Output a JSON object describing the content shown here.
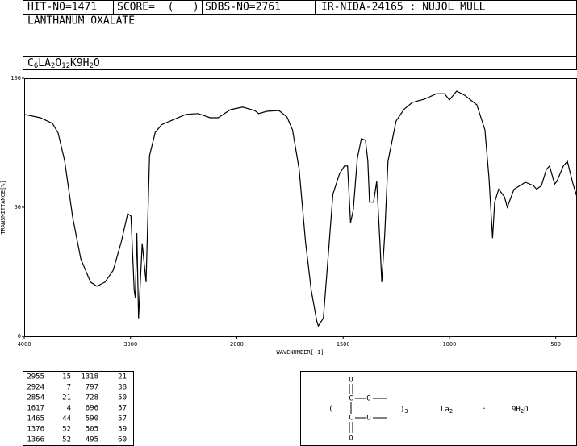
{
  "header": {
    "hit_no": "HIT-NO=1471",
    "score": "SCORE=  (   )",
    "sdbs_no": "SDBS-NO=2761",
    "ir": "IR-NIDA-24165 : NUJOL MULL",
    "name": "LANTHANUM OXALATE",
    "formula": [
      "C",
      "6",
      "LA",
      "2",
      "O",
      "12",
      "K9H",
      "2",
      "O"
    ]
  },
  "chart_data": {
    "type": "line",
    "xlabel": "WAVENUMBER[-1]",
    "ylabel": "TRANSMITTANCE[%]",
    "xlim": [
      4000,
      400
    ],
    "xbreak": 2000,
    "xscale_ratio": 2,
    "xticks": [
      4000,
      3000,
      2000,
      1500,
      1000,
      500
    ],
    "ylim": [
      0,
      100
    ],
    "yticks": [
      0,
      50,
      100
    ],
    "x": [
      4000,
      3848,
      3734,
      3681,
      3620,
      3544,
      3468,
      3376,
      3316,
      3240,
      3163,
      3087,
      3027,
      2996,
      2965,
      2955,
      2940,
      2924,
      2890,
      2854,
      2821,
      2768,
      2707,
      2593,
      2479,
      2365,
      2251,
      2175,
      2061,
      1973,
      1916,
      1897,
      1859,
      1802,
      1764,
      1738,
      1707,
      1677,
      1650,
      1624,
      1617,
      1593,
      1574,
      1548,
      1517,
      1494,
      1479,
      1465,
      1452,
      1433,
      1414,
      1395,
      1384,
      1376,
      1366,
      1357,
      1342,
      1327,
      1318,
      1304,
      1289,
      1251,
      1213,
      1175,
      1118,
      1061,
      1023,
      1000,
      966,
      928,
      871,
      833,
      814,
      797,
      787,
      768,
      741,
      728,
      696,
      643,
      605,
      590,
      567,
      544,
      529,
      505,
      495,
      464,
      445,
      422,
      400
    ],
    "series": [
      {
        "name": "spectrum",
        "color": "#000000",
        "values": [
          86,
          84.7,
          82.5,
          78.8,
          68,
          46,
          30,
          21,
          19.4,
          21,
          25.6,
          36.6,
          47.5,
          46.6,
          17.8,
          15,
          40,
          7,
          36,
          21,
          70,
          79,
          82,
          84,
          86,
          86.3,
          84.7,
          84.7,
          87.8,
          88.8,
          87.5,
          86.3,
          87.2,
          87.5,
          85,
          80,
          64.7,
          36.6,
          17.8,
          6,
          4,
          7,
          27,
          55,
          63,
          66,
          66,
          44,
          49,
          69,
          76.6,
          76,
          68,
          52,
          52,
          52,
          60,
          36.6,
          21,
          39.7,
          67.8,
          83.4,
          88,
          90.6,
          91.9,
          94,
          94,
          91.6,
          95,
          93.4,
          89.7,
          80,
          61.6,
          38,
          52,
          57,
          54,
          50,
          57,
          59.7,
          58.4,
          57,
          58.4,
          64.7,
          66,
          59,
          60,
          66,
          67.8,
          60,
          54
        ]
      }
    ]
  },
  "peaks": [
    [
      2955,
      15,
      1318,
      21
    ],
    [
      2924,
      7,
      797,
      38
    ],
    [
      2854,
      21,
      728,
      50
    ],
    [
      1617,
      4,
      696,
      57
    ],
    [
      1465,
      44,
      590,
      57
    ],
    [
      1376,
      52,
      505,
      59
    ],
    [
      1366,
      52,
      495,
      60
    ]
  ],
  "structure": {
    "o_top": "O",
    "c_top": "C",
    "o_right_top": "O",
    "c_bottom": "C",
    "o_right_bottom": "O",
    "o_bottom": "O",
    "open": "(",
    "close": ")",
    "count": "3",
    "metal": "La",
    "metal_count": "2",
    "dot": "·",
    "water": [
      "9H",
      "2",
      "O"
    ]
  }
}
